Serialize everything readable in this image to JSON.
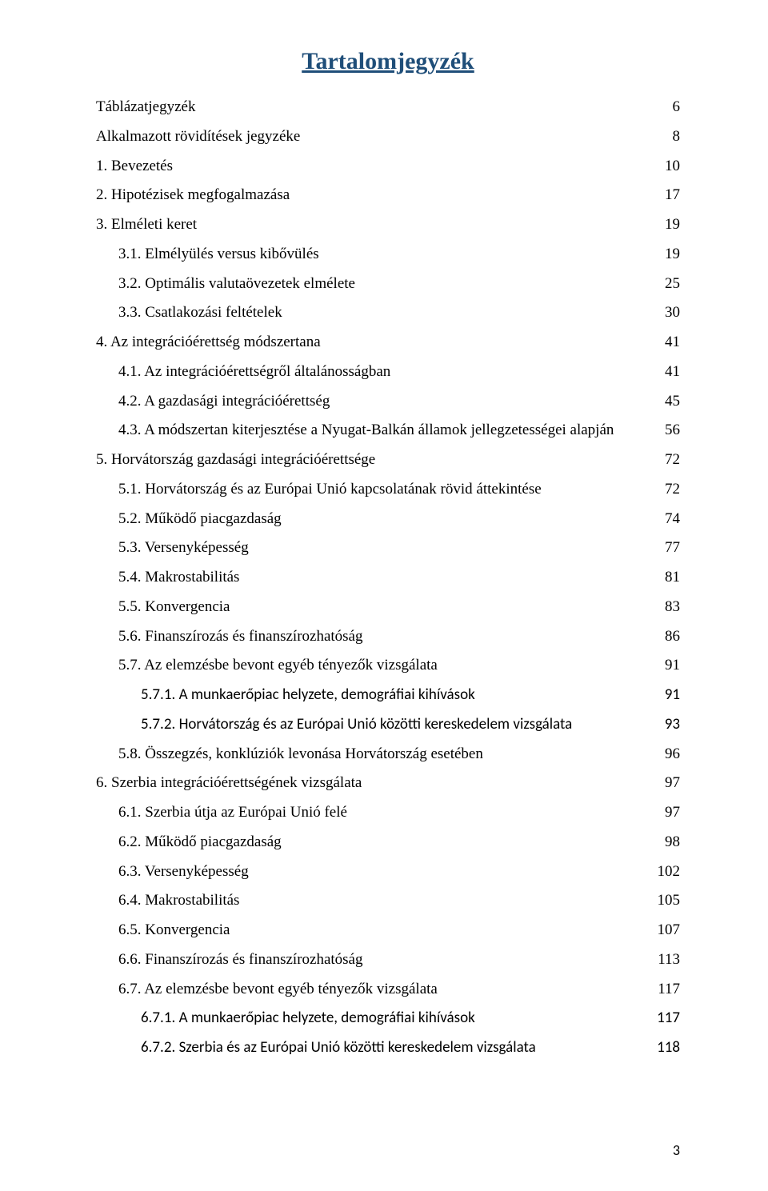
{
  "title": "Tartalomjegyzék",
  "page_number": "3",
  "colors": {
    "title": "#1f4e79",
    "text": "#000000",
    "background": "#ffffff"
  },
  "toc": [
    {
      "label": "Táblázatjegyzék",
      "page": "6",
      "indent": 0,
      "alt": false
    },
    {
      "label": "Alkalmazott rövidítések jegyzéke",
      "page": "8",
      "indent": 0,
      "alt": false
    },
    {
      "label": "1.   Bevezetés",
      "page": "10",
      "indent": 0,
      "alt": false
    },
    {
      "label": "2.   Hipotézisek megfogalmazása",
      "page": "17",
      "indent": 0,
      "alt": false
    },
    {
      "label": "3.   Elméleti keret",
      "page": "19",
      "indent": 0,
      "alt": false
    },
    {
      "label": "3.1. Elmélyülés versus kibővülés",
      "page": "19",
      "indent": 1,
      "alt": false
    },
    {
      "label": "3.2. Optimális valutaövezetek elmélete",
      "page": "25",
      "indent": 1,
      "alt": false
    },
    {
      "label": "3.3. Csatlakozási feltételek",
      "page": "30",
      "indent": 1,
      "alt": false
    },
    {
      "label": "4.   Az integrációérettség módszertana",
      "page": "41",
      "indent": 0,
      "alt": false
    },
    {
      "label": "4.1.    Az integrációérettségről általánosságban",
      "page": "41",
      "indent": 1,
      "alt": false
    },
    {
      "label": "4.2. A gazdasági integrációérettség",
      "page": "45",
      "indent": 1,
      "alt": false
    },
    {
      "label": "4.3. A módszertan kiterjesztése a Nyugat-Balkán államok jellegzetességei alapján",
      "page": "56",
      "indent": 1,
      "alt": false
    },
    {
      "label": "5.   Horvátország gazdasági integrációérettsége",
      "page": "72",
      "indent": 0,
      "alt": false
    },
    {
      "label": "5.1. Horvátország és az Európai Unió kapcsolatának rövid áttekintése",
      "page": "72",
      "indent": 1,
      "alt": false
    },
    {
      "label": "5.2. Működő piacgazdaság",
      "page": "74",
      "indent": 1,
      "alt": false
    },
    {
      "label": "5.3. Versenyképesség",
      "page": "77",
      "indent": 1,
      "alt": false
    },
    {
      "label": "5.4. Makrostabilitás",
      "page": "81",
      "indent": 1,
      "alt": false
    },
    {
      "label": "5.5. Konvergencia",
      "page": "83",
      "indent": 1,
      "alt": false
    },
    {
      "label": "5.6.    Finanszírozás és finanszírozhatóság",
      "page": "86",
      "indent": 1,
      "alt": false
    },
    {
      "label": "5.7.    Az elemzésbe bevont egyéb tényezők vizsgálata",
      "page": "91",
      "indent": 1,
      "alt": false
    },
    {
      "label": "5.7.1. A munkaerőpiac helyzete, demográfiai kihívások",
      "page": "91",
      "indent": 2,
      "alt": true
    },
    {
      "label": "5.7.2. Horvátország és az Európai Unió közötti kereskedelem vizsgálata",
      "page": "93",
      "indent": 2,
      "alt": true
    },
    {
      "label": "5.8.    Összegzés, konklúziók levonása Horvátország esetében",
      "page": "96",
      "indent": 1,
      "alt": false
    },
    {
      "label": "6.   Szerbia integrációérettségének vizsgálata",
      "page": "97",
      "indent": 0,
      "alt": false
    },
    {
      "label": "6.1.    Szerbia útja az Európai Unió felé",
      "page": "97",
      "indent": 1,
      "alt": false
    },
    {
      "label": "6.2.    Működő piacgazdaság",
      "page": "98",
      "indent": 1,
      "alt": false
    },
    {
      "label": "6.3.    Versenyképesség",
      "page": "102",
      "indent": 1,
      "alt": false
    },
    {
      "label": "6.4.    Makrostabilitás",
      "page": "105",
      "indent": 1,
      "alt": false
    },
    {
      "label": "6.5.    Konvergencia",
      "page": "107",
      "indent": 1,
      "alt": false
    },
    {
      "label": "6.6.    Finanszírozás és finanszírozhatóság",
      "page": "113",
      "indent": 1,
      "alt": false
    },
    {
      "label": "6.7.    Az elemzésbe bevont egyéb tényezők vizsgálata",
      "page": "117",
      "indent": 1,
      "alt": false
    },
    {
      "label": "6.7.1. A munkaerőpiac helyzete, demográfiai kihívások",
      "page": "117",
      "indent": 2,
      "alt": true
    },
    {
      "label": "6.7.2. Szerbia és az Európai Unió közötti kereskedelem vizsgálata",
      "page": "118",
      "indent": 2,
      "alt": true
    }
  ]
}
